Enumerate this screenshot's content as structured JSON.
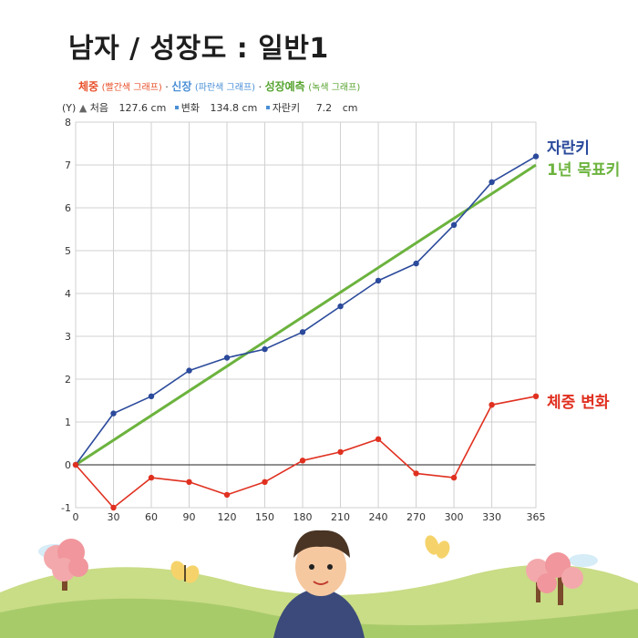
{
  "page_title": "남자 / 성장도 : 일반1",
  "legend_row": {
    "weight_label": "체중",
    "weight_sub": "(빨간색 그래프)",
    "height_label": "신장",
    "height_sub": "(파란색 그래프)",
    "forecast_label": "성장예측",
    "forecast_sub": "(녹색 그래프)",
    "separator": "·"
  },
  "info_row": {
    "axis_tag": "(Y)",
    "initial_label": "처음",
    "initial_value": "127.6",
    "initial_unit": "cm",
    "change_label": "변화",
    "change_value": "134.8",
    "change_unit": "cm",
    "growth_label": "자란키",
    "growth_value": "7.2",
    "growth_unit": "cm"
  },
  "side_labels": {
    "height": "자란키",
    "target": "1년 목표키",
    "weight": "체중 변화"
  },
  "colors": {
    "height": "#2b4a9b",
    "weight": "#e03020",
    "target": "#6cb33e",
    "grid": "#d0d0d0"
  },
  "chart_data": {
    "type": "line",
    "x": [
      0,
      30,
      60,
      90,
      120,
      150,
      180,
      210,
      240,
      270,
      300,
      330,
      365
    ],
    "xticks": [
      "0",
      "30",
      "60",
      "90",
      "120",
      "150",
      "180",
      "210",
      "240",
      "270",
      "300",
      "330",
      "365"
    ],
    "yticks": [
      "-1",
      "0",
      "1",
      "2",
      "3",
      "4",
      "5",
      "6",
      "7",
      "8"
    ],
    "xlim": [
      0,
      365
    ],
    "ylim": [
      -1,
      8
    ],
    "grid": true,
    "series": [
      {
        "name": "자란키",
        "color": "#2b4a9b",
        "markers": true,
        "values": [
          0,
          1.2,
          1.6,
          2.2,
          2.5,
          2.7,
          3.1,
          3.7,
          4.3,
          4.7,
          5.6,
          6.6,
          7.2
        ]
      },
      {
        "name": "1년 목표키",
        "color": "#6cb33e",
        "markers": false,
        "x": [
          0,
          365
        ],
        "values": [
          0,
          7.0
        ]
      },
      {
        "name": "체중 변화",
        "color": "#e03020",
        "markers": true,
        "values": [
          0,
          -1.0,
          -0.3,
          -0.4,
          -0.7,
          -0.4,
          0.1,
          0.3,
          0.6,
          -0.2,
          -0.3,
          1.4,
          1.6
        ]
      }
    ]
  }
}
